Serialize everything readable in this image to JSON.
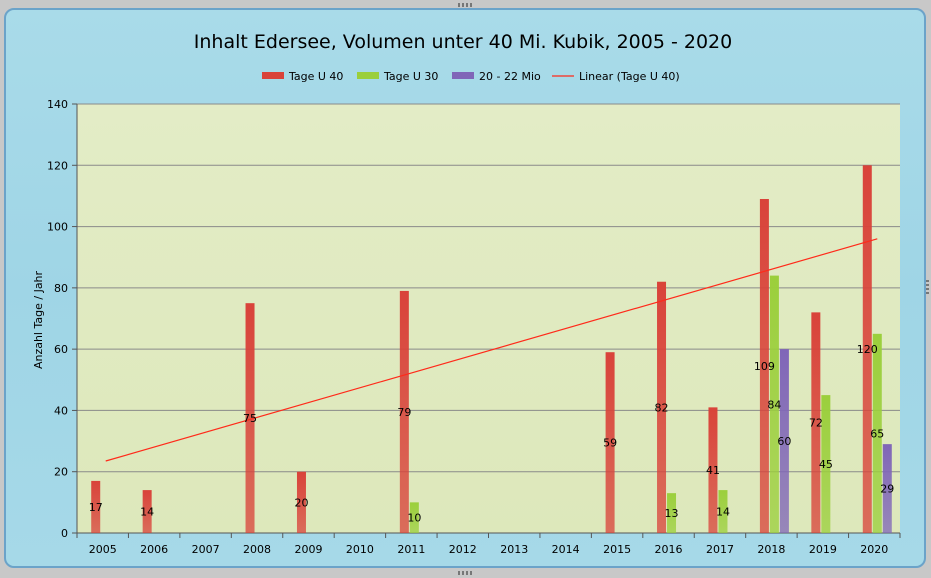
{
  "chart_data": {
    "type": "bar",
    "title": "Inhalt Edersee, Volumen unter 40 Mi. Kubik, 2005 - 2020",
    "xlabel": "",
    "ylabel": "Anzahl Tage / Jahr",
    "ylim": [
      0,
      140
    ],
    "yticks": [
      0,
      20,
      40,
      60,
      80,
      100,
      120,
      140
    ],
    "grid": true,
    "legend_position": "top",
    "categories": [
      "2005",
      "2006",
      "2007",
      "2008",
      "2009",
      "2010",
      "2011",
      "2012",
      "2013",
      "2014",
      "2015",
      "2016",
      "2017",
      "2018",
      "2019",
      "2020"
    ],
    "series": [
      {
        "name": "Tage U 40",
        "color": "#d9433a",
        "values": [
          17,
          14,
          null,
          75,
          20,
          null,
          79,
          null,
          null,
          null,
          59,
          82,
          41,
          109,
          72,
          120
        ],
        "labels": [
          "17",
          "14",
          "",
          "75",
          "20",
          "",
          "79",
          "",
          "",
          "",
          "59",
          "82",
          "41",
          "109",
          "72",
          "120"
        ]
      },
      {
        "name": "Tage U 30",
        "color": "#9bcf3c",
        "values": [
          null,
          null,
          null,
          null,
          null,
          null,
          10,
          null,
          null,
          null,
          null,
          13,
          14,
          84,
          45,
          65
        ],
        "labels": [
          "",
          "",
          "",
          "",
          "",
          "",
          "10",
          "",
          "",
          "",
          "",
          "13",
          "14",
          "84",
          "45",
          "65"
        ]
      },
      {
        "name": "20 - 22 Mio",
        "color": "#8066b8",
        "values": [
          null,
          null,
          null,
          null,
          null,
          null,
          null,
          null,
          null,
          null,
          null,
          null,
          null,
          60,
          null,
          29
        ],
        "labels": [
          "",
          "",
          "",
          "",
          "",
          "",
          "",
          "",
          "",
          "",
          "",
          "",
          "",
          "60",
          "",
          "29"
        ]
      }
    ],
    "trendline": {
      "name": "Linear (Tage U 40)",
      "color": "#ff2a1a",
      "from": {
        "x": "2005",
        "y": 23.5
      },
      "to": {
        "x": "2020",
        "y": 96
      }
    }
  }
}
